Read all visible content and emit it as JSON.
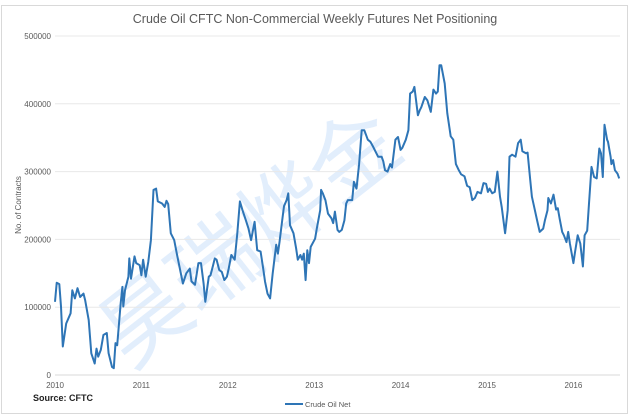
{
  "chart_data": {
    "type": "line",
    "title": "Crude Oil CFTC Non-Commercial Weekly Futures Net Positioning",
    "xlabel": "",
    "ylabel": "No. of Contracts",
    "xlim": [
      2010,
      2016.55
    ],
    "ylim": [
      0,
      500000
    ],
    "x_ticks": [
      "2010",
      "2011",
      "2012",
      "2013",
      "2014",
      "2015",
      "2016"
    ],
    "y_ticks": [
      "0",
      "100000",
      "200000",
      "300000",
      "400000",
      "500000"
    ],
    "grid": true,
    "legend_position": "bottom",
    "source": "Source: CFTC",
    "series": [
      {
        "name": "Crude Oil Net",
        "color": "#2e75b6",
        "points": [
          [
            2010.0,
            108000
          ],
          [
            2010.02,
            136000
          ],
          [
            2010.05,
            134000
          ],
          [
            2010.07,
            101000
          ],
          [
            2010.09,
            42000
          ],
          [
            2010.13,
            76000
          ],
          [
            2010.18,
            91000
          ],
          [
            2010.2,
            125000
          ],
          [
            2010.23,
            113000
          ],
          [
            2010.26,
            128000
          ],
          [
            2010.29,
            115000
          ],
          [
            2010.33,
            120000
          ],
          [
            2010.35,
            110000
          ],
          [
            2010.39,
            81000
          ],
          [
            2010.42,
            32000
          ],
          [
            2010.46,
            17000
          ],
          [
            2010.48,
            39000
          ],
          [
            2010.5,
            27000
          ],
          [
            2010.53,
            37000
          ],
          [
            2010.56,
            59000
          ],
          [
            2010.6,
            62000
          ],
          [
            2010.62,
            32000
          ],
          [
            2010.66,
            12000
          ],
          [
            2010.68,
            10000
          ],
          [
            2010.7,
            47000
          ],
          [
            2010.72,
            44000
          ],
          [
            2010.76,
            106000
          ],
          [
            2010.78,
            130000
          ],
          [
            2010.79,
            101000
          ],
          [
            2010.81,
            125000
          ],
          [
            2010.85,
            145000
          ],
          [
            2010.86,
            172000
          ],
          [
            2010.88,
            142000
          ],
          [
            2010.92,
            175000
          ],
          [
            2010.94,
            165000
          ],
          [
            2010.98,
            162000
          ],
          [
            2011.0,
            147000
          ],
          [
            2011.02,
            170000
          ],
          [
            2011.05,
            145000
          ],
          [
            2011.08,
            167000
          ],
          [
            2011.11,
            199000
          ],
          [
            2011.14,
            273000
          ],
          [
            2011.17,
            275000
          ],
          [
            2011.19,
            256000
          ],
          [
            2011.24,
            253000
          ],
          [
            2011.27,
            248000
          ],
          [
            2011.29,
            257000
          ],
          [
            2011.31,
            252000
          ],
          [
            2011.34,
            209000
          ],
          [
            2011.38,
            199000
          ],
          [
            2011.41,
            179000
          ],
          [
            2011.48,
            135000
          ],
          [
            2011.52,
            150000
          ],
          [
            2011.56,
            157000
          ],
          [
            2011.58,
            138000
          ],
          [
            2011.62,
            133000
          ],
          [
            2011.66,
            165000
          ],
          [
            2011.69,
            165000
          ],
          [
            2011.72,
            135000
          ],
          [
            2011.74,
            108000
          ],
          [
            2011.78,
            145000
          ],
          [
            2011.8,
            147000
          ],
          [
            2011.83,
            162000
          ],
          [
            2011.85,
            172000
          ],
          [
            2011.87,
            170000
          ],
          [
            2011.9,
            155000
          ],
          [
            2011.93,
            152000
          ],
          [
            2011.96,
            140000
          ],
          [
            2011.99,
            145000
          ],
          [
            2012.01,
            157000
          ],
          [
            2012.04,
            177000
          ],
          [
            2012.08,
            170000
          ],
          [
            2012.11,
            209000
          ],
          [
            2012.14,
            256000
          ],
          [
            2012.17,
            243000
          ],
          [
            2012.21,
            228000
          ],
          [
            2012.24,
            216000
          ],
          [
            2012.27,
            199000
          ],
          [
            2012.29,
            213000
          ],
          [
            2012.31,
            226000
          ],
          [
            2012.34,
            184000
          ],
          [
            2012.38,
            182000
          ],
          [
            2012.41,
            157000
          ],
          [
            2012.43,
            138000
          ],
          [
            2012.46,
            120000
          ],
          [
            2012.49,
            113000
          ],
          [
            2012.52,
            150000
          ],
          [
            2012.56,
            192000
          ],
          [
            2012.58,
            179000
          ],
          [
            2012.6,
            197000
          ],
          [
            2012.63,
            228000
          ],
          [
            2012.65,
            249000
          ],
          [
            2012.68,
            258000
          ],
          [
            2012.7,
            268000
          ],
          [
            2012.72,
            221000
          ],
          [
            2012.76,
            209000
          ],
          [
            2012.79,
            187000
          ],
          [
            2012.81,
            170000
          ],
          [
            2012.84,
            177000
          ],
          [
            2012.86,
            170000
          ],
          [
            2012.88,
            179000
          ],
          [
            2012.9,
            140000
          ],
          [
            2012.92,
            184000
          ],
          [
            2012.94,
            165000
          ],
          [
            2012.96,
            189000
          ],
          [
            2013.01,
            201000
          ],
          [
            2013.03,
            216000
          ],
          [
            2013.07,
            243000
          ],
          [
            2013.08,
            273000
          ],
          [
            2013.1,
            268000
          ],
          [
            2013.13,
            258000
          ],
          [
            2013.16,
            238000
          ],
          [
            2013.2,
            231000
          ],
          [
            2013.22,
            224000
          ],
          [
            2013.24,
            241000
          ],
          [
            2013.27,
            214000
          ],
          [
            2013.29,
            211000
          ],
          [
            2013.32,
            214000
          ],
          [
            2013.35,
            228000
          ],
          [
            2013.37,
            253000
          ],
          [
            2013.39,
            258000
          ],
          [
            2013.44,
            258000
          ],
          [
            2013.46,
            285000
          ],
          [
            2013.49,
            275000
          ],
          [
            2013.52,
            311000
          ],
          [
            2013.55,
            361000
          ],
          [
            2013.58,
            361000
          ],
          [
            2013.62,
            347000
          ],
          [
            2013.65,
            344000
          ],
          [
            2013.68,
            337000
          ],
          [
            2013.72,
            327000
          ],
          [
            2013.74,
            322000
          ],
          [
            2013.78,
            322000
          ],
          [
            2013.8,
            315000
          ],
          [
            2013.82,
            302000
          ],
          [
            2013.85,
            300000
          ],
          [
            2013.88,
            311000
          ],
          [
            2013.9,
            306000
          ],
          [
            2013.94,
            347000
          ],
          [
            2013.97,
            351000
          ],
          [
            2014.0,
            332000
          ],
          [
            2014.02,
            335000
          ],
          [
            2014.06,
            347000
          ],
          [
            2014.09,
            361000
          ],
          [
            2014.11,
            415000
          ],
          [
            2014.14,
            418000
          ],
          [
            2014.16,
            425000
          ],
          [
            2014.2,
            383000
          ],
          [
            2014.22,
            390000
          ],
          [
            2014.24,
            395000
          ],
          [
            2014.28,
            410000
          ],
          [
            2014.31,
            405000
          ],
          [
            2014.35,
            388000
          ],
          [
            2014.38,
            421000
          ],
          [
            2014.41,
            415000
          ],
          [
            2014.43,
            418000
          ],
          [
            2014.45,
            457000
          ],
          [
            2014.47,
            457000
          ],
          [
            2014.51,
            430000
          ],
          [
            2014.54,
            386000
          ],
          [
            2014.58,
            352000
          ],
          [
            2014.61,
            347000
          ],
          [
            2014.64,
            311000
          ],
          [
            2014.67,
            303000
          ],
          [
            2014.7,
            296000
          ],
          [
            2014.74,
            293000
          ],
          [
            2014.77,
            279000
          ],
          [
            2014.8,
            277000
          ],
          [
            2014.83,
            258000
          ],
          [
            2014.86,
            261000
          ],
          [
            2014.89,
            270000
          ],
          [
            2014.93,
            268000
          ],
          [
            2014.96,
            283000
          ],
          [
            2014.99,
            282000
          ],
          [
            2015.01,
            270000
          ],
          [
            2015.03,
            275000
          ],
          [
            2015.06,
            268000
          ],
          [
            2015.09,
            270000
          ],
          [
            2015.12,
            300000
          ],
          [
            2015.15,
            263000
          ],
          [
            2015.17,
            248000
          ],
          [
            2015.21,
            209000
          ],
          [
            2015.24,
            243000
          ],
          [
            2015.26,
            322000
          ],
          [
            2015.29,
            325000
          ],
          [
            2015.33,
            322000
          ],
          [
            2015.36,
            342000
          ],
          [
            2015.39,
            347000
          ],
          [
            2015.41,
            330000
          ],
          [
            2015.45,
            327000
          ],
          [
            2015.47,
            328000
          ],
          [
            2015.5,
            288000
          ],
          [
            2015.52,
            263000
          ],
          [
            2015.54,
            251000
          ],
          [
            2015.58,
            228000
          ],
          [
            2015.61,
            211000
          ],
          [
            2015.65,
            216000
          ],
          [
            2015.67,
            228000
          ],
          [
            2015.7,
            243000
          ],
          [
            2015.71,
            261000
          ],
          [
            2015.74,
            253000
          ],
          [
            2015.77,
            266000
          ],
          [
            2015.8,
            244000
          ],
          [
            2015.82,
            246000
          ],
          [
            2015.84,
            231000
          ],
          [
            2015.87,
            211000
          ],
          [
            2015.89,
            206000
          ],
          [
            2015.92,
            196000
          ],
          [
            2015.94,
            211000
          ],
          [
            2015.96,
            194000
          ],
          [
            2016.0,
            165000
          ],
          [
            2016.02,
            182000
          ],
          [
            2016.05,
            206000
          ],
          [
            2016.08,
            194000
          ],
          [
            2016.11,
            160000
          ],
          [
            2016.13,
            206000
          ],
          [
            2016.16,
            213000
          ],
          [
            2016.18,
            253000
          ],
          [
            2016.21,
            307000
          ],
          [
            2016.24,
            292000
          ],
          [
            2016.27,
            290000
          ],
          [
            2016.3,
            334000
          ],
          [
            2016.32,
            327000
          ],
          [
            2016.34,
            292000
          ],
          [
            2016.36,
            369000
          ],
          [
            2016.39,
            347000
          ],
          [
            2016.4,
            344000
          ],
          [
            2016.43,
            322000
          ],
          [
            2016.44,
            311000
          ],
          [
            2016.46,
            317000
          ],
          [
            2016.48,
            302000
          ],
          [
            2016.51,
            297000
          ],
          [
            2016.53,
            290000
          ]
        ]
      }
    ]
  },
  "watermark": "昊瑞烨金"
}
